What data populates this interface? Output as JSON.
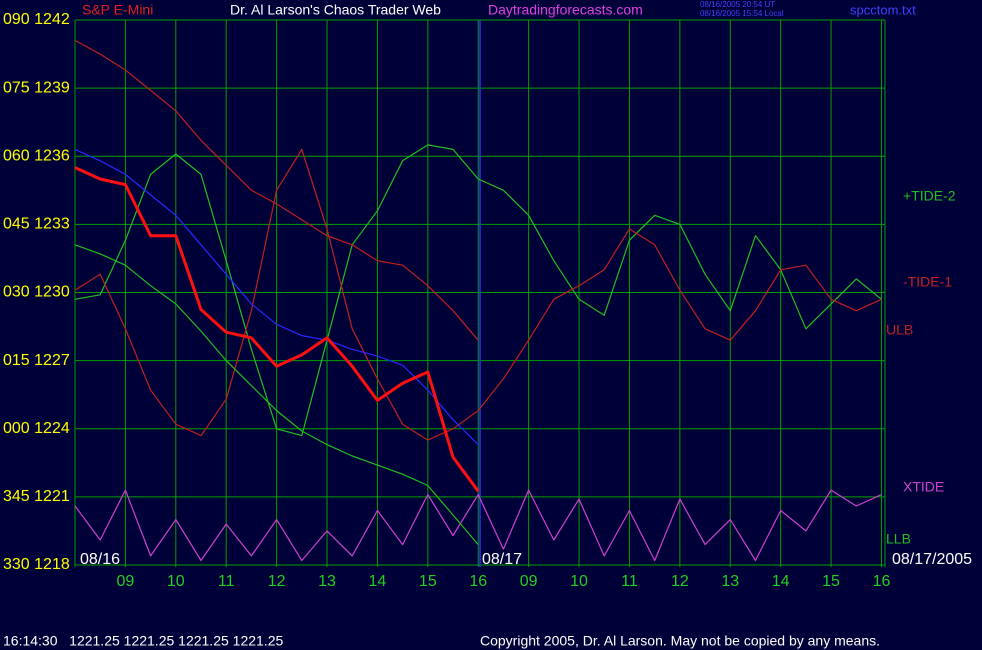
{
  "chart_data": {
    "type": "line",
    "symbol": "S&P E-Mini",
    "title": "Dr. Al Larson's Chaos Trader Web",
    "subtitle": "Daytradingforecasts.com",
    "timestamps": [
      "08/16/2005 20:54 UT",
      "08/16/2005 15:54 Local"
    ],
    "file": "spcctom.txt",
    "date_labels": [
      "08/16",
      "08/17",
      "08/17/2005"
    ],
    "status": "16:14:30   1221.25 1221.25 1221.25 1221.25",
    "copyright": "Copyright 2005, Dr. Al Larson. May not be copied by any means.",
    "grid": true,
    "xlim": [
      0,
      16.07
    ],
    "xticks": [
      {
        "value": 1,
        "label": "09"
      },
      {
        "value": 2,
        "label": "10"
      },
      {
        "value": 3,
        "label": "11"
      },
      {
        "value": 4,
        "label": "12"
      },
      {
        "value": 5,
        "label": "13"
      },
      {
        "value": 6,
        "label": "14"
      },
      {
        "value": 7,
        "label": "15"
      },
      {
        "value": 8,
        "label": "16"
      },
      {
        "value": 9,
        "label": "09"
      },
      {
        "value": 10,
        "label": "10"
      },
      {
        "value": 11,
        "label": "11"
      },
      {
        "value": 12,
        "label": "12"
      },
      {
        "value": 13,
        "label": "13"
      },
      {
        "value": 14,
        "label": "14"
      },
      {
        "value": 15,
        "label": "15"
      },
      {
        "value": 16,
        "label": "16"
      }
    ],
    "ylim": [
      1218,
      1242
    ],
    "yticks": [
      {
        "value": 1218,
        "label": "330 1218"
      },
      {
        "value": 1221,
        "label": "345 1221"
      },
      {
        "value": 1224,
        "label": "000 1224"
      },
      {
        "value": 1227,
        "label": "015 1227"
      },
      {
        "value": 1230,
        "label": "030 1230"
      },
      {
        "value": 1233,
        "label": "045 1233"
      },
      {
        "value": 1236,
        "label": "060 1236"
      },
      {
        "value": 1239,
        "label": "075 1239"
      },
      {
        "value": 1242,
        "label": "090 1242"
      }
    ],
    "series": [
      {
        "name": "+TIDE-2",
        "color": "#20c020",
        "x": [
          0,
          0.5,
          1,
          1.5,
          2,
          2.5,
          3,
          3.5,
          4,
          4.5,
          5,
          5.5,
          6,
          6.5,
          7,
          7.5,
          8,
          8.5,
          9,
          9.5,
          10,
          10.5,
          11,
          11.5,
          12,
          12.5,
          13,
          13.5,
          14,
          14.5,
          15,
          15.5,
          16
        ],
        "values": [
          1229.7,
          1229.9,
          1232.3,
          1235.2,
          1236.1,
          1235.2,
          1231.4,
          1227.5,
          1224.0,
          1223.7,
          1227.9,
          1232.1,
          1233.6,
          1235.8,
          1236.5,
          1236.3,
          1235.0,
          1234.5,
          1233.4,
          1231.4,
          1229.7,
          1229.0,
          1232.3,
          1233.4,
          1233.0,
          1230.8,
          1229.2,
          1232.5,
          1231.0,
          1228.4,
          1229.5,
          1230.6,
          1229.7
        ]
      },
      {
        "name": "-TIDE-1",
        "color": "#c02020",
        "x": [
          0,
          0.5,
          1,
          1.5,
          2,
          2.5,
          3,
          3.5,
          4,
          4.5,
          5,
          5.5,
          6,
          6.5,
          7,
          7.5,
          8,
          8.5,
          9,
          9.5,
          10,
          10.5,
          11,
          11.5,
          12,
          12.5,
          13,
          13.5,
          14,
          14.5,
          15,
          15.5,
          16
        ],
        "values": [
          1230.1,
          1230.8,
          1228.4,
          1225.7,
          1224.2,
          1223.7,
          1225.3,
          1229.2,
          1234.5,
          1236.3,
          1232.8,
          1228.4,
          1226.2,
          1224.2,
          1223.5,
          1224.0,
          1224.8,
          1226.2,
          1227.9,
          1229.7,
          1230.3,
          1231.0,
          1232.8,
          1232.1,
          1230.1,
          1228.4,
          1227.9,
          1229.2,
          1231.0,
          1231.2,
          1229.7,
          1229.2,
          1229.7
        ]
      },
      {
        "name": "ULB",
        "color": "#c02020",
        "x": [
          0,
          0.5,
          1,
          1.5,
          2,
          2.5,
          3,
          3.5,
          4,
          4.5,
          5,
          5.5,
          6,
          6.5,
          7,
          7.5,
          8
        ],
        "values": [
          1241.1,
          1240.5,
          1239.8,
          1238.9,
          1238.0,
          1236.7,
          1235.6,
          1234.5,
          1233.9,
          1233.2,
          1232.5,
          1232.1,
          1231.4,
          1231.2,
          1230.3,
          1229.2,
          1227.9
        ]
      },
      {
        "name": "XTIDE",
        "color": "#d040d0",
        "x": [
          0,
          0.5,
          1,
          1.5,
          2,
          2.5,
          3,
          3.5,
          4,
          4.5,
          5,
          5.5,
          6,
          6.5,
          7,
          7.5,
          8,
          8.5,
          9,
          9.5,
          10,
          10.5,
          11,
          11.5,
          12,
          12.5,
          13,
          13.5,
          14,
          14.5,
          15,
          15.5,
          16
        ],
        "values": [
          1220.6,
          1219.1,
          1221.3,
          1218.4,
          1220.0,
          1218.2,
          1219.8,
          1218.4,
          1220.0,
          1218.2,
          1219.5,
          1218.4,
          1220.4,
          1218.9,
          1221.1,
          1219.3,
          1221.1,
          1218.7,
          1221.3,
          1219.1,
          1220.9,
          1218.4,
          1220.4,
          1218.2,
          1220.9,
          1218.9,
          1220.0,
          1218.2,
          1220.4,
          1219.5,
          1221.3,
          1220.6,
          1221.1
        ]
      },
      {
        "name": "LLB",
        "color": "#20c020",
        "x": [
          0,
          0.5,
          1,
          1.5,
          2,
          2.5,
          3,
          3.5,
          4,
          4.5,
          5,
          5.5,
          6,
          6.5,
          7,
          7.5,
          8
        ],
        "values": [
          1232.1,
          1231.7,
          1231.2,
          1230.3,
          1229.5,
          1228.3,
          1227.0,
          1225.9,
          1224.8,
          1223.9,
          1223.3,
          1222.8,
          1222.4,
          1222.0,
          1221.5,
          1220.2,
          1218.9
        ]
      },
      {
        "color": "#2828ff",
        "x": [
          0,
          0.5,
          1,
          1.5,
          2,
          2.5,
          3,
          3.5,
          4,
          4.5,
          5,
          5.5,
          6,
          6.5,
          7,
          7.5,
          8
        ],
        "values": [
          1236.3,
          1235.8,
          1235.2,
          1234.3,
          1233.4,
          1232.1,
          1230.8,
          1229.5,
          1228.6,
          1228.1,
          1227.9,
          1227.5,
          1227.2,
          1226.8,
          1225.7,
          1224.4,
          1223.3
        ]
      },
      {
        "color": "#ff1010",
        "x": [
          0,
          0.5,
          1,
          1.5,
          2,
          2.5,
          3,
          3.5,
          4,
          4.5,
          5,
          5.5,
          6,
          6.5,
          7,
          7.5,
          8
        ],
        "values": [
          1235.5,
          1235,
          1234.75,
          1232.5,
          1232.5,
          1229.25,
          1228.25,
          1228,
          1226.75,
          1227.25,
          1228,
          1226.75,
          1225.25,
          1226,
          1226.5,
          1222.75,
          1221.25
        ]
      }
    ]
  }
}
